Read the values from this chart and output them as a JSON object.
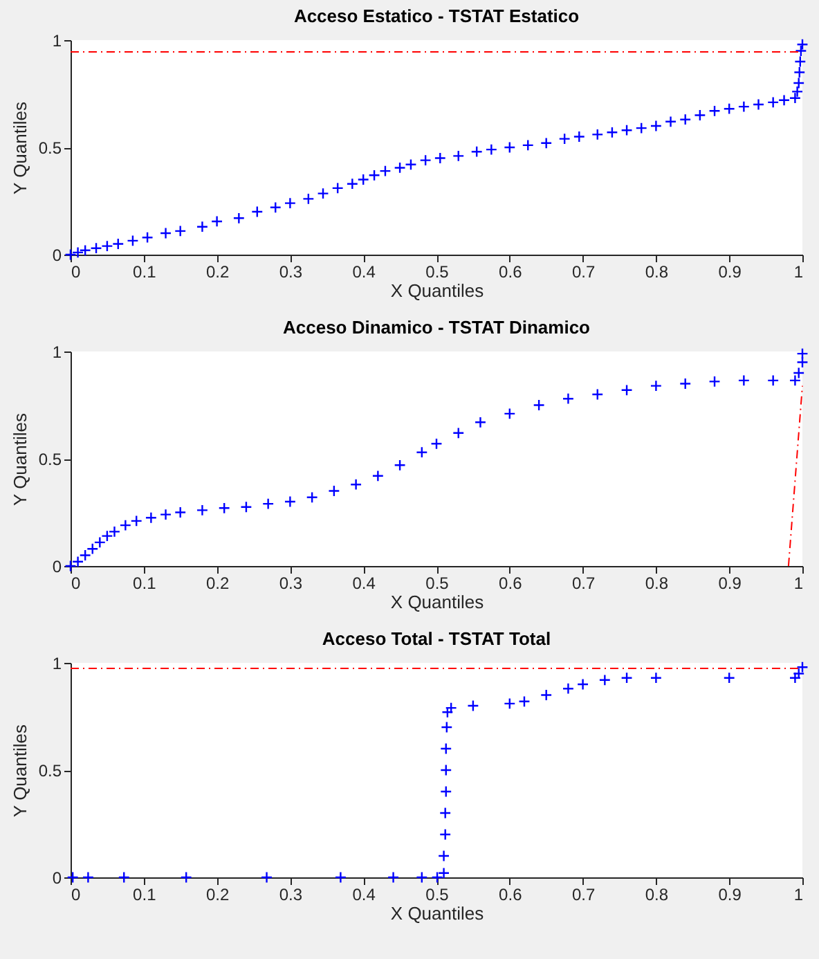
{
  "chart_data": [
    {
      "type": "scatter",
      "title": "Acceso Estatico - TSTAT Estatico",
      "xlabel": "X Quantiles",
      "ylabel": "Y Quantiles",
      "xlim": [
        0,
        1
      ],
      "xticks": [
        0,
        0.1,
        0.2,
        0.3,
        0.4,
        0.5,
        0.6,
        0.7,
        0.8,
        0.9,
        1
      ],
      "ylim": [
        0,
        1
      ],
      "yticks": [
        0,
        0.5,
        1
      ],
      "series": [
        {
          "color": "#0000ff",
          "marker": "cross",
          "x": [
            0,
            0.01,
            0.02,
            0.035,
            0.05,
            0.065,
            0.085,
            0.105,
            0.13,
            0.15,
            0.18,
            0.2,
            0.23,
            0.255,
            0.28,
            0.3,
            0.325,
            0.345,
            0.365,
            0.385,
            0.4,
            0.415,
            0.43,
            0.45,
            0.465,
            0.485,
            0.505,
            0.53,
            0.555,
            0.575,
            0.6,
            0.625,
            0.65,
            0.675,
            0.695,
            0.72,
            0.74,
            0.76,
            0.78,
            0.8,
            0.82,
            0.84,
            0.86,
            0.88,
            0.9,
            0.92,
            0.94,
            0.96,
            0.975,
            0.99,
            0.993,
            0.995,
            0.996,
            0.997,
            0.998,
            1
          ],
          "values": [
            0,
            0.01,
            0.02,
            0.03,
            0.04,
            0.05,
            0.065,
            0.08,
            0.1,
            0.11,
            0.13,
            0.155,
            0.17,
            0.2,
            0.22,
            0.24,
            0.26,
            0.285,
            0.31,
            0.33,
            0.35,
            0.37,
            0.39,
            0.405,
            0.42,
            0.44,
            0.45,
            0.46,
            0.48,
            0.49,
            0.5,
            0.51,
            0.52,
            0.54,
            0.55,
            0.56,
            0.57,
            0.58,
            0.59,
            0.6,
            0.62,
            0.63,
            0.65,
            0.67,
            0.68,
            0.69,
            0.7,
            0.71,
            0.72,
            0.73,
            0.76,
            0.8,
            0.85,
            0.9,
            0.95,
            0.98
          ]
        },
        {
          "type": "line",
          "color": "#ff0000",
          "line_style": "dashed",
          "x": [
            0,
            1
          ],
          "values": [
            0.945,
            0.945
          ]
        }
      ]
    },
    {
      "type": "scatter",
      "title": "Acceso Dinamico - TSTAT Dinamico",
      "xlabel": "X Quantiles",
      "ylabel": "Y Quantiles",
      "xlim": [
        0,
        1
      ],
      "xticks": [
        0,
        0.1,
        0.2,
        0.3,
        0.4,
        0.5,
        0.6,
        0.7,
        0.8,
        0.9,
        1
      ],
      "ylim": [
        0,
        1
      ],
      "yticks": [
        0,
        0.5,
        1
      ],
      "series": [
        {
          "color": "#0000ff",
          "marker": "cross",
          "x": [
            0,
            0.01,
            0.02,
            0.03,
            0.04,
            0.05,
            0.06,
            0.075,
            0.09,
            0.11,
            0.13,
            0.15,
            0.18,
            0.21,
            0.24,
            0.27,
            0.3,
            0.33,
            0.36,
            0.39,
            0.42,
            0.45,
            0.48,
            0.5,
            0.53,
            0.56,
            0.6,
            0.64,
            0.68,
            0.72,
            0.76,
            0.8,
            0.84,
            0.88,
            0.92,
            0.96,
            0.99,
            0.995,
            1,
            1
          ],
          "values": [
            0,
            0.02,
            0.05,
            0.08,
            0.11,
            0.14,
            0.16,
            0.19,
            0.21,
            0.225,
            0.24,
            0.25,
            0.26,
            0.27,
            0.275,
            0.29,
            0.3,
            0.32,
            0.35,
            0.38,
            0.42,
            0.47,
            0.53,
            0.57,
            0.62,
            0.67,
            0.71,
            0.75,
            0.78,
            0.8,
            0.82,
            0.84,
            0.85,
            0.86,
            0.865,
            0.865,
            0.865,
            0.9,
            0.95,
            0.99
          ]
        },
        {
          "type": "line",
          "color": "#ff0000",
          "line_style": "dashed",
          "x": [
            0.981,
            1
          ],
          "values": [
            0,
            0.84
          ]
        }
      ]
    },
    {
      "type": "scatter",
      "title": "Acceso Total - TSTAT Total",
      "xlabel": "X Quantiles",
      "ylabel": "Y Quantiles",
      "xlim": [
        0,
        1
      ],
      "xticks": [
        0,
        0.1,
        0.2,
        0.3,
        0.4,
        0.5,
        0.6,
        0.7,
        0.8,
        0.9,
        1
      ],
      "ylim": [
        0,
        1
      ],
      "yticks": [
        0,
        0.5,
        1
      ],
      "series": [
        {
          "color": "#0000ff",
          "marker": "cross",
          "x": [
            0.003,
            0.024,
            0.073,
            0.158,
            0.268,
            0.369,
            0.441,
            0.48,
            0.501,
            0.51,
            0.51,
            0.512,
            0.512,
            0.513,
            0.513,
            0.513,
            0.514,
            0.515,
            0.52,
            0.55,
            0.6,
            0.62,
            0.65,
            0.68,
            0.7,
            0.73,
            0.76,
            0.8,
            0.9,
            0.99,
            0.995,
            1
          ],
          "values": [
            0,
            0,
            0,
            0,
            0,
            0,
            0,
            0,
            0,
            0.02,
            0.1,
            0.2,
            0.3,
            0.4,
            0.5,
            0.6,
            0.7,
            0.77,
            0.79,
            0.8,
            0.81,
            0.82,
            0.85,
            0.88,
            0.9,
            0.92,
            0.93,
            0.93,
            0.93,
            0.93,
            0.95,
            0.98
          ]
        },
        {
          "type": "line",
          "color": "#ff0000",
          "line_style": "dashed",
          "x": [
            0,
            1
          ],
          "values": [
            0.974,
            0.974
          ]
        }
      ]
    }
  ]
}
